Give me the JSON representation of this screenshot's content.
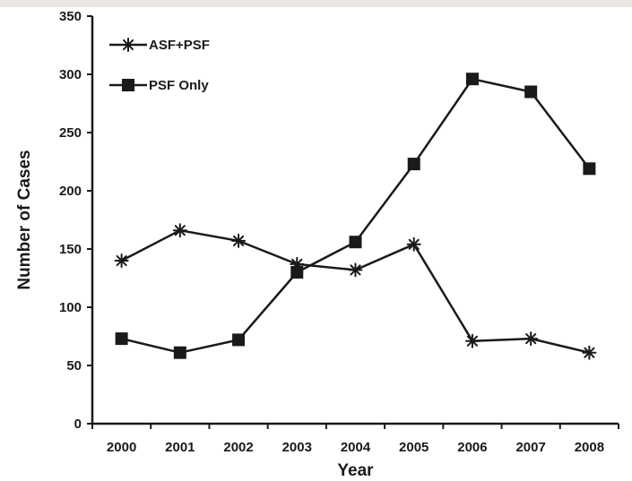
{
  "chart_data": {
    "type": "line",
    "title": "",
    "xlabel": "Year",
    "ylabel": "Number of Cases",
    "categories": [
      "2000",
      "2001",
      "2002",
      "2003",
      "2004",
      "2005",
      "2006",
      "2007",
      "2008"
    ],
    "ylim": [
      0,
      350
    ],
    "yticks": [
      0,
      50,
      100,
      150,
      200,
      250,
      300,
      350
    ],
    "grid": false,
    "legend_position": "top-left",
    "series": [
      {
        "name": "ASF+PSF",
        "marker": "asterisk",
        "color": "#1a1a1a",
        "values": [
          140,
          166,
          157,
          137,
          132,
          154,
          71,
          73,
          61
        ]
      },
      {
        "name": "PSF Only",
        "marker": "square",
        "color": "#1a1a1a",
        "values": [
          73,
          61,
          72,
          130,
          156,
          223,
          296,
          285,
          219
        ]
      }
    ]
  }
}
